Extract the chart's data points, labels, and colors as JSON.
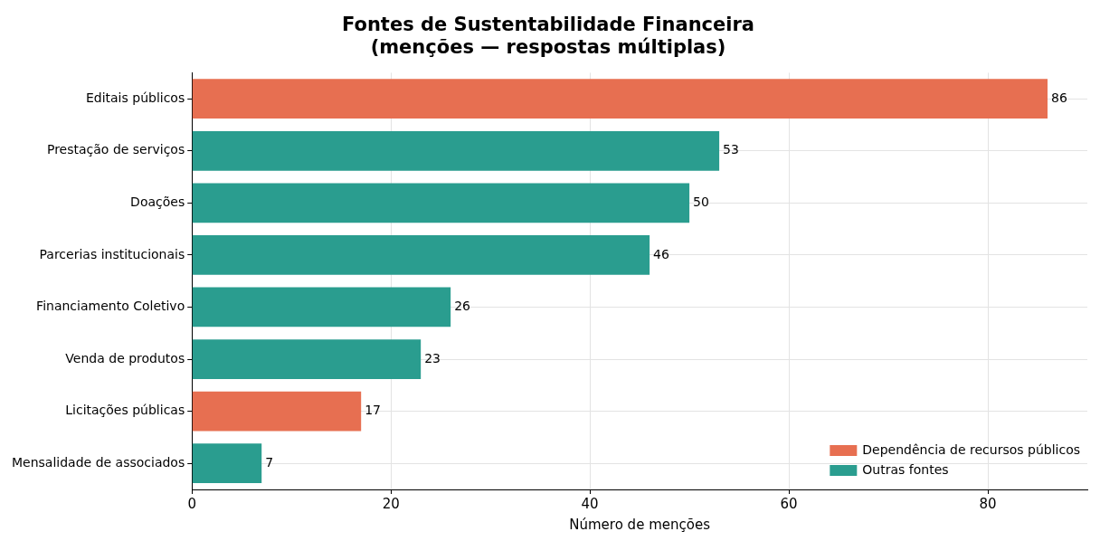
{
  "chart_data": {
    "type": "bar",
    "orientation": "horizontal",
    "stacked": true,
    "title": "Fontes de Sustentabilidade Financeira\n(menções — respostas múltiplas)",
    "xlabel": "Número de menções",
    "categories": [
      "Editais públicos",
      "Prestação de serviços",
      "Doações",
      "Parcerias institucionais",
      "Financiamento Coletivo",
      "Venda de produtos",
      "Licitações públicas",
      "Mensalidade de associados"
    ],
    "series": [
      {
        "name": "Dependência de recursos públicos",
        "color": "#e76f51",
        "values": [
          86,
          null,
          null,
          null,
          null,
          null,
          17,
          null
        ]
      },
      {
        "name": "Outras fontes",
        "color": "#2a9d8f",
        "values": [
          null,
          53,
          50,
          46,
          26,
          23,
          null,
          7
        ]
      }
    ],
    "xlim": [
      0,
      90
    ],
    "xticks": [
      0,
      20,
      40,
      60,
      80
    ],
    "grid": true,
    "legend": "bottom right",
    "data_labels": true
  }
}
